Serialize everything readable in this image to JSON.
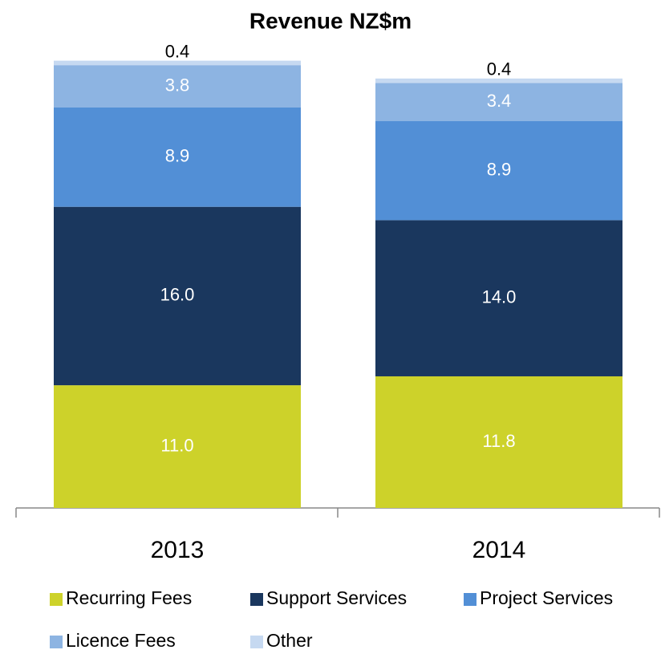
{
  "chart_data": {
    "type": "stacked_bar",
    "title": "Revenue NZ$m",
    "categories": [
      "2013",
      "2014"
    ],
    "series": [
      {
        "name": "Recurring Fees",
        "color": "#cdd22a",
        "values": [
          11.0,
          11.8
        ],
        "value_labels": [
          "11.0",
          "11.8"
        ]
      },
      {
        "name": "Support Services",
        "color": "#1a375e",
        "values": [
          16.0,
          14.0
        ],
        "value_labels": [
          "16.0",
          "14.0"
        ]
      },
      {
        "name": "Project Services",
        "color": "#528fd6",
        "values": [
          8.9,
          8.9
        ]
      },
      {
        "name": "Licence Fees",
        "color": "#8db4e2",
        "values": [
          3.8,
          3.4
        ]
      },
      {
        "name": "Other",
        "color": "#c6d9f1",
        "values": [
          0.4,
          0.4
        ]
      }
    ]
  }
}
